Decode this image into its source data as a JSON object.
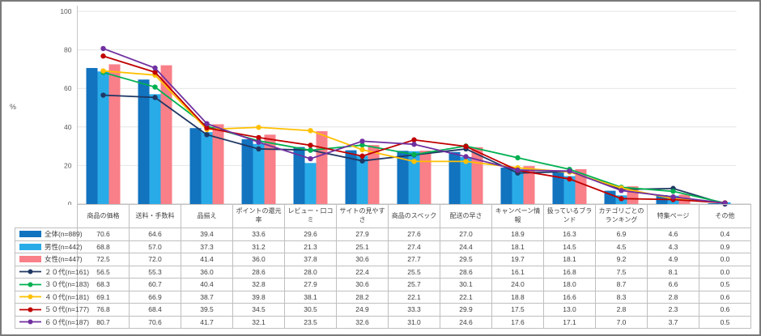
{
  "frame": {
    "background": "#ffffff",
    "border_color": "#7a7a7a"
  },
  "chart_data": {
    "type": "bar+line",
    "title": "",
    "ylabel": "%",
    "ylim": [
      0,
      100
    ],
    "yticks": [
      0,
      20,
      40,
      60,
      80,
      100
    ],
    "grid": "horizontal",
    "legend_position": "table-left",
    "categories": [
      "商品の価格",
      "送料・手数料",
      "品揃え",
      "ポイントの還元率",
      "レビュー・口コミ",
      "サイトの見やすさ",
      "商品のスペック",
      "配送の早さ",
      "キャンペーン情報",
      "扱っているブランド",
      "カテゴリごとのランキング",
      "特集ページ",
      "その他"
    ],
    "bar_series": [
      {
        "name": "全体(n=889)",
        "color": "#1273BF",
        "values": [
          70.6,
          64.6,
          39.4,
          33.6,
          29.6,
          27.9,
          27.6,
          27.0,
          18.9,
          16.3,
          6.9,
          4.6,
          0.4
        ]
      },
      {
        "name": "男性(n=442)",
        "color": "#29ABE8",
        "values": [
          68.8,
          57.0,
          37.3,
          31.2,
          21.3,
          25.1,
          27.4,
          24.4,
          18.1,
          14.5,
          4.5,
          4.3,
          0.9
        ]
      },
      {
        "name": "女性(n=447)",
        "color": "#F97F88",
        "values": [
          72.5,
          72.0,
          41.4,
          36.0,
          37.8,
          30.6,
          27.7,
          29.5,
          19.7,
          18.1,
          9.2,
          4.9,
          0.0
        ]
      }
    ],
    "line_series": [
      {
        "name": "２０代(n=161)",
        "color": "#1F3864",
        "values": [
          56.5,
          55.3,
          36.0,
          28.6,
          28.0,
          22.4,
          25.5,
          28.6,
          16.1,
          16.8,
          7.5,
          8.1,
          0.0
        ]
      },
      {
        "name": "３０代(n=183)",
        "color": "#00B050",
        "values": [
          68.3,
          60.7,
          40.4,
          32.8,
          27.9,
          30.6,
          25.7,
          30.1,
          24.0,
          18.0,
          8.7,
          6.6,
          0.5
        ]
      },
      {
        "name": "４０代(n=181)",
        "color": "#FFC000",
        "values": [
          69.1,
          66.9,
          38.7,
          39.8,
          38.1,
          28.2,
          22.1,
          22.1,
          18.8,
          16.6,
          8.3,
          2.8,
          0.6
        ]
      },
      {
        "name": "５０代(n=177)",
        "color": "#C00000",
        "values": [
          76.8,
          68.4,
          39.5,
          34.5,
          30.5,
          24.9,
          33.3,
          29.9,
          17.5,
          13.0,
          2.8,
          2.3,
          0.6
        ]
      },
      {
        "name": "６０代(n=187)",
        "color": "#7030A0",
        "values": [
          80.7,
          70.6,
          41.7,
          32.1,
          23.5,
          32.6,
          31.0,
          24.6,
          17.6,
          17.1,
          7.0,
          3.7,
          0.5
        ]
      }
    ]
  }
}
